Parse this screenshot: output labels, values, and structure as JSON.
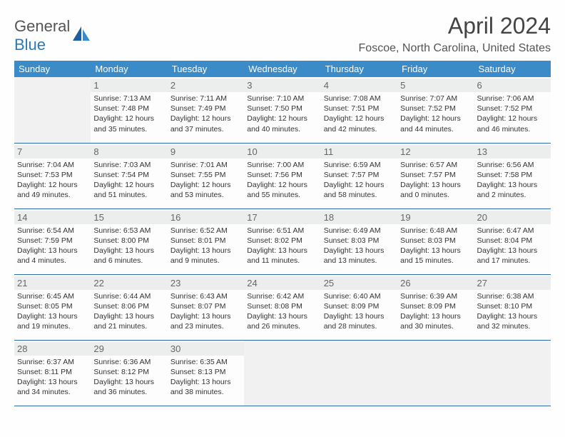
{
  "logo": {
    "text_a": "General",
    "text_b": "Blue"
  },
  "title": "April 2024",
  "location": "Foscoe, North Carolina, United States",
  "colors": {
    "header_bg": "#3b8bc8",
    "header_text": "#ffffff",
    "border": "#2a6ca3",
    "daynum_bg": "#eceded",
    "daynum_text": "#666666",
    "cell_text": "#333333",
    "empty_bg": "#f1f1f1",
    "title_text": "#444444",
    "location_text": "#555555",
    "logo_gray": "#555555",
    "logo_blue": "#2a7ab8"
  },
  "typography": {
    "month_title_size": 32,
    "location_size": 16,
    "weekday_size": 13,
    "daynum_size": 13,
    "cell_text_size": 10.5
  },
  "weekdays": [
    "Sunday",
    "Monday",
    "Tuesday",
    "Wednesday",
    "Thursday",
    "Friday",
    "Saturday"
  ],
  "grid": {
    "first_weekday_index": 1,
    "days_in_month": 30
  },
  "days": {
    "1": {
      "sunrise": "7:13 AM",
      "sunset": "7:48 PM",
      "daylight": "12 hours and 35 minutes."
    },
    "2": {
      "sunrise": "7:11 AM",
      "sunset": "7:49 PM",
      "daylight": "12 hours and 37 minutes."
    },
    "3": {
      "sunrise": "7:10 AM",
      "sunset": "7:50 PM",
      "daylight": "12 hours and 40 minutes."
    },
    "4": {
      "sunrise": "7:08 AM",
      "sunset": "7:51 PM",
      "daylight": "12 hours and 42 minutes."
    },
    "5": {
      "sunrise": "7:07 AM",
      "sunset": "7:52 PM",
      "daylight": "12 hours and 44 minutes."
    },
    "6": {
      "sunrise": "7:06 AM",
      "sunset": "7:52 PM",
      "daylight": "12 hours and 46 minutes."
    },
    "7": {
      "sunrise": "7:04 AM",
      "sunset": "7:53 PM",
      "daylight": "12 hours and 49 minutes."
    },
    "8": {
      "sunrise": "7:03 AM",
      "sunset": "7:54 PM",
      "daylight": "12 hours and 51 minutes."
    },
    "9": {
      "sunrise": "7:01 AM",
      "sunset": "7:55 PM",
      "daylight": "12 hours and 53 minutes."
    },
    "10": {
      "sunrise": "7:00 AM",
      "sunset": "7:56 PM",
      "daylight": "12 hours and 55 minutes."
    },
    "11": {
      "sunrise": "6:59 AM",
      "sunset": "7:57 PM",
      "daylight": "12 hours and 58 minutes."
    },
    "12": {
      "sunrise": "6:57 AM",
      "sunset": "7:57 PM",
      "daylight": "13 hours and 0 minutes."
    },
    "13": {
      "sunrise": "6:56 AM",
      "sunset": "7:58 PM",
      "daylight": "13 hours and 2 minutes."
    },
    "14": {
      "sunrise": "6:54 AM",
      "sunset": "7:59 PM",
      "daylight": "13 hours and 4 minutes."
    },
    "15": {
      "sunrise": "6:53 AM",
      "sunset": "8:00 PM",
      "daylight": "13 hours and 6 minutes."
    },
    "16": {
      "sunrise": "6:52 AM",
      "sunset": "8:01 PM",
      "daylight": "13 hours and 9 minutes."
    },
    "17": {
      "sunrise": "6:51 AM",
      "sunset": "8:02 PM",
      "daylight": "13 hours and 11 minutes."
    },
    "18": {
      "sunrise": "6:49 AM",
      "sunset": "8:03 PM",
      "daylight": "13 hours and 13 minutes."
    },
    "19": {
      "sunrise": "6:48 AM",
      "sunset": "8:03 PM",
      "daylight": "13 hours and 15 minutes."
    },
    "20": {
      "sunrise": "6:47 AM",
      "sunset": "8:04 PM",
      "daylight": "13 hours and 17 minutes."
    },
    "21": {
      "sunrise": "6:45 AM",
      "sunset": "8:05 PM",
      "daylight": "13 hours and 19 minutes."
    },
    "22": {
      "sunrise": "6:44 AM",
      "sunset": "8:06 PM",
      "daylight": "13 hours and 21 minutes."
    },
    "23": {
      "sunrise": "6:43 AM",
      "sunset": "8:07 PM",
      "daylight": "13 hours and 23 minutes."
    },
    "24": {
      "sunrise": "6:42 AM",
      "sunset": "8:08 PM",
      "daylight": "13 hours and 26 minutes."
    },
    "25": {
      "sunrise": "6:40 AM",
      "sunset": "8:09 PM",
      "daylight": "13 hours and 28 minutes."
    },
    "26": {
      "sunrise": "6:39 AM",
      "sunset": "8:09 PM",
      "daylight": "13 hours and 30 minutes."
    },
    "27": {
      "sunrise": "6:38 AM",
      "sunset": "8:10 PM",
      "daylight": "13 hours and 32 minutes."
    },
    "28": {
      "sunrise": "6:37 AM",
      "sunset": "8:11 PM",
      "daylight": "13 hours and 34 minutes."
    },
    "29": {
      "sunrise": "6:36 AM",
      "sunset": "8:12 PM",
      "daylight": "13 hours and 36 minutes."
    },
    "30": {
      "sunrise": "6:35 AM",
      "sunset": "8:13 PM",
      "daylight": "13 hours and 38 minutes."
    }
  },
  "labels": {
    "sunrise": "Sunrise:",
    "sunset": "Sunset:",
    "daylight": "Daylight:"
  }
}
